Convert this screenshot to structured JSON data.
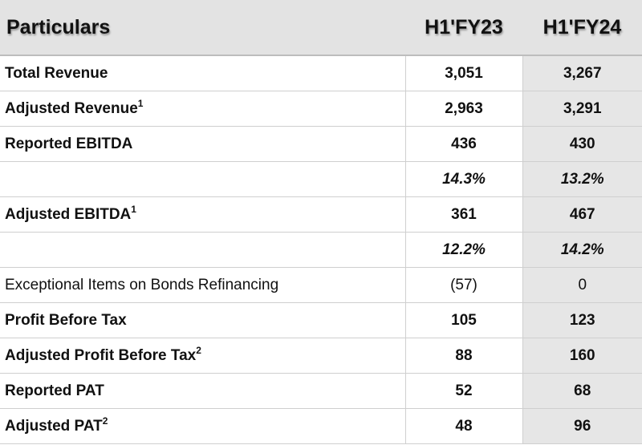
{
  "header": {
    "label": "Particulars",
    "col1": "H1'FY23",
    "col2": "H1'FY24"
  },
  "rows": [
    {
      "label": "Total Revenue",
      "sup": "",
      "v1": "3,051",
      "v2": "3,267"
    },
    {
      "label": "Adjusted Revenue",
      "sup": "1",
      "v1": "2,963",
      "v2": "3,291"
    },
    {
      "label": "Reported EBITDA",
      "sup": "",
      "v1": "436",
      "v2": "430"
    },
    {
      "label": "",
      "sup": "",
      "v1": "14.3%",
      "v2": "13.2%"
    },
    {
      "label": "Adjusted EBITDA",
      "sup": "1",
      "v1": "361",
      "v2": "467"
    },
    {
      "label": "",
      "sup": "",
      "v1": "12.2%",
      "v2": "14.2%"
    },
    {
      "label": "Exceptional Items on Bonds Refinancing",
      "sup": "",
      "v1": "(57)",
      "v2": "0"
    },
    {
      "label": "Profit Before Tax",
      "sup": "",
      "v1": "105",
      "v2": "123"
    },
    {
      "label": "Adjusted Profit Before Tax",
      "sup": "2",
      "v1": "88",
      "v2": "160"
    },
    {
      "label": "Reported PAT",
      "sup": "",
      "v1": "52",
      "v2": "68"
    },
    {
      "label": "Adjusted PAT",
      "sup": "2",
      "v1": "48",
      "v2": "96"
    }
  ]
}
